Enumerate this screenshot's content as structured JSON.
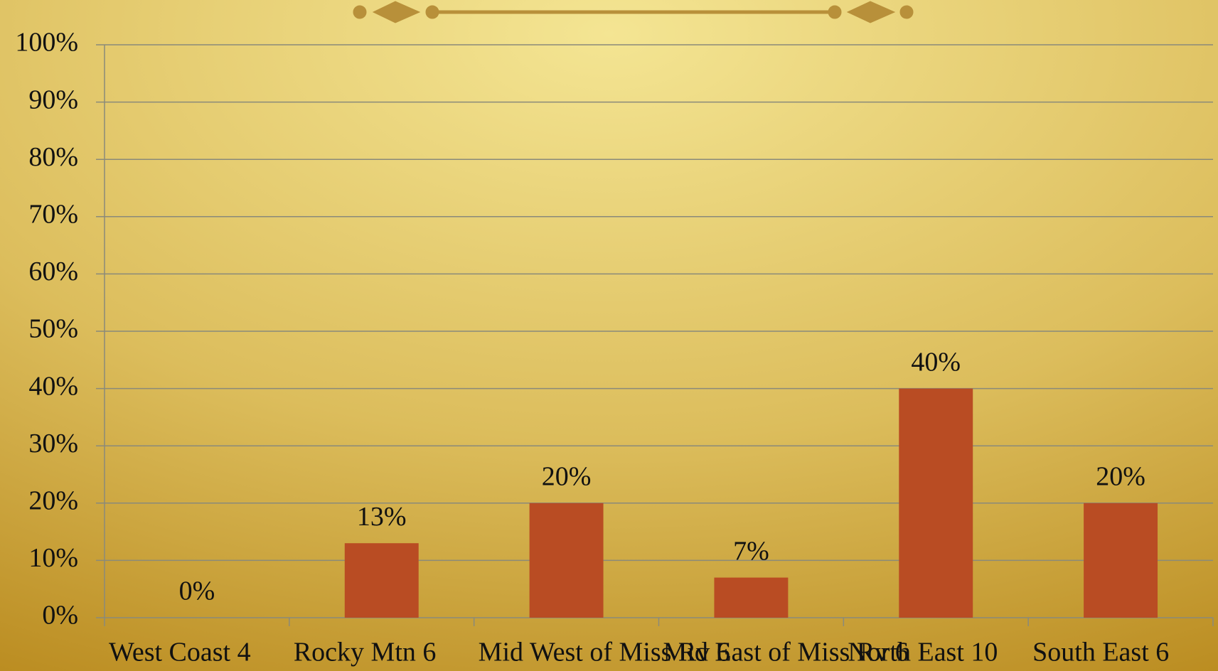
{
  "chart_data": {
    "type": "bar",
    "categories": [
      "West Coast 4",
      "Rocky Mtn 6",
      "Mid West of Miss Rv 6",
      "Mid East of Miss Rv 6",
      "North East 10",
      "South East 6"
    ],
    "values": [
      0,
      13,
      20,
      7,
      40,
      20
    ],
    "value_labels": [
      "0%",
      "13%",
      "20%",
      "7%",
      "40%",
      "20%"
    ],
    "color": "#b94c23",
    "ylim": [
      0,
      100
    ],
    "yticks": [
      {
        "value": 0,
        "label": "0%"
      },
      {
        "value": 10,
        "label": "10%"
      },
      {
        "value": 20,
        "label": "20%"
      },
      {
        "value": 30,
        "label": "30%"
      },
      {
        "value": 40,
        "label": "40%"
      },
      {
        "value": 50,
        "label": "50%"
      },
      {
        "value": 60,
        "label": "60%"
      },
      {
        "value": 70,
        "label": "70%"
      },
      {
        "value": 80,
        "label": "80%"
      },
      {
        "value": 90,
        "label": "90%"
      },
      {
        "value": 100,
        "label": "100%"
      }
    ],
    "grid": true
  }
}
